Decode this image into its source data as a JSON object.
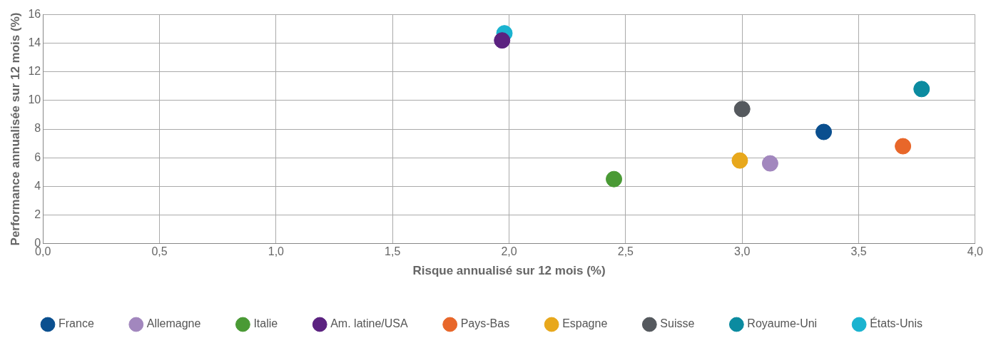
{
  "chart_data": {
    "type": "scatter",
    "xlabel": "Risque annualisé sur 12 mois (%)",
    "ylabel": "Performance annualisée sur 12 mois (%)",
    "xlim": [
      0,
      4
    ],
    "ylim": [
      0,
      16
    ],
    "xticks": [
      {
        "value": 0,
        "label": "0,0"
      },
      {
        "value": 0.5,
        "label": "0,5"
      },
      {
        "value": 1,
        "label": "1,0"
      },
      {
        "value": 1.5,
        "label": "1,5"
      },
      {
        "value": 2,
        "label": "2,0"
      },
      {
        "value": 2.5,
        "label": "2,5"
      },
      {
        "value": 3,
        "label": "3,0"
      },
      {
        "value": 3.5,
        "label": "3,5"
      },
      {
        "value": 4,
        "label": "4,0"
      }
    ],
    "yticks": [
      0,
      2,
      4,
      6,
      8,
      10,
      12,
      14,
      16
    ],
    "grid": true,
    "legend": "bottom",
    "marker": "circle",
    "series": [
      {
        "name": "France",
        "color": "#0a4f8f",
        "x": [
          3.35
        ],
        "values": [
          7.8
        ]
      },
      {
        "name": "Allemagne",
        "color": "#a287be",
        "x": [
          3.12
        ],
        "values": [
          5.6
        ]
      },
      {
        "name": "Italie",
        "color": "#4a9a35",
        "x": [
          2.45
        ],
        "values": [
          4.5
        ]
      },
      {
        "name": "Am. latine/USA",
        "color": "#5b2280",
        "x": [
          1.97
        ],
        "values": [
          14.2
        ]
      },
      {
        "name": "Pays-Bas",
        "color": "#e8672a",
        "x": [
          3.69
        ],
        "values": [
          6.8
        ]
      },
      {
        "name": "Espagne",
        "color": "#e8a81c",
        "x": [
          2.99
        ],
        "values": [
          5.8
        ]
      },
      {
        "name": "Suisse",
        "color": "#55595e",
        "x": [
          3.0
        ],
        "values": [
          9.4
        ]
      },
      {
        "name": "Royaume-Uni",
        "color": "#0b8ba0",
        "x": [
          3.77
        ],
        "values": [
          10.8
        ]
      },
      {
        "name": "États-Unis",
        "color": "#1ab3d0",
        "x": [
          1.98
        ],
        "values": [
          14.7
        ]
      }
    ]
  }
}
